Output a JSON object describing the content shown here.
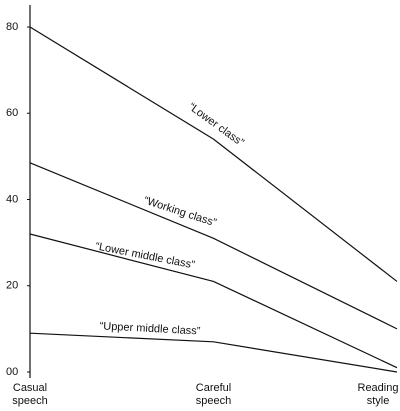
{
  "chart_data": {
    "type": "line",
    "categories": [
      "Casual speech",
      "Careful speech",
      "Reading style"
    ],
    "series": [
      {
        "name": "“Lower class”",
        "color": "#111111",
        "values": [
          80,
          54,
          21
        ]
      },
      {
        "name": "“Working class”",
        "color": "#111111",
        "values": [
          48.5,
          31,
          10
        ]
      },
      {
        "name": "“Lower middle class”",
        "color": "#111111",
        "values": [
          32,
          21,
          1
        ]
      },
      {
        "name": "“Upper middle class”",
        "color": "#111111",
        "values": [
          9,
          7,
          0
        ]
      }
    ],
    "ylim": [
      0,
      86
    ],
    "yticks": [
      {
        "value": 0,
        "label": "00"
      },
      20,
      40,
      60,
      80
    ],
    "grid": false
  }
}
